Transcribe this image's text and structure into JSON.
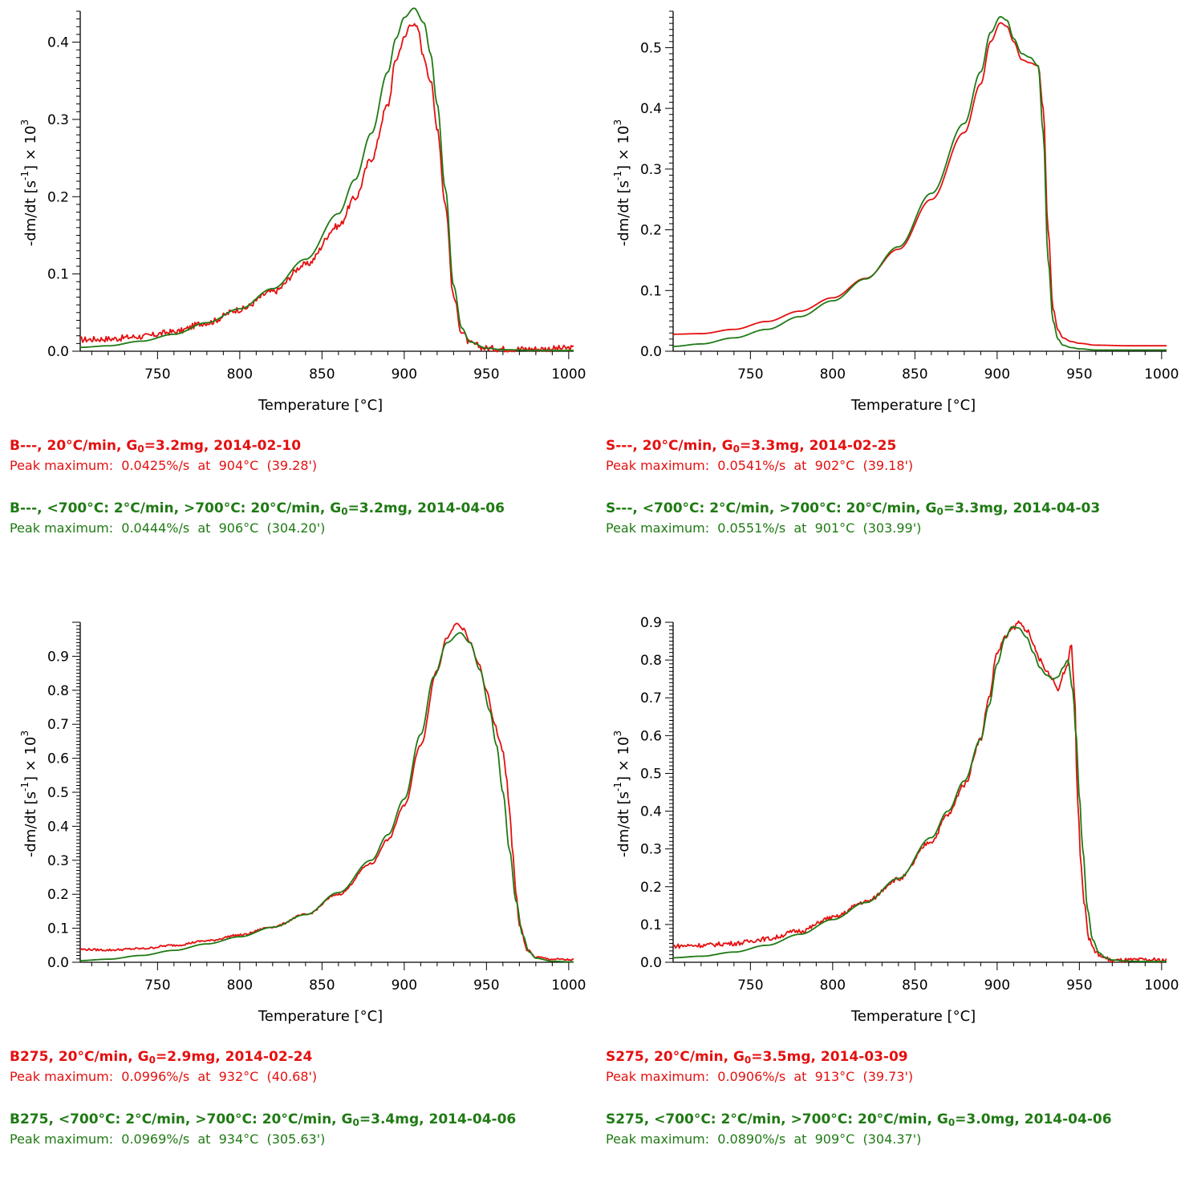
{
  "axis_labels": {
    "xlabel": "Temperature  [°C]",
    "ylabel_prefix": "-dm/dt  [s",
    "ylabel_exp": "-1",
    "ylabel_mid": "]  ×  10",
    "ylabel_pow": "3"
  },
  "colors": {
    "red": "#e41010",
    "green": "#1f7a14"
  },
  "chart_data": [
    {
      "type": "line",
      "xlim": [
        703,
        1003
      ],
      "ylim": [
        0,
        0.44
      ],
      "xticks": [
        750,
        800,
        850,
        900,
        950,
        1000
      ],
      "yticks": [
        0.0,
        0.1,
        0.2,
        0.3,
        0.4
      ],
      "ydecimals": 1,
      "xlabel": "Temperature  [°C]",
      "series": [
        {
          "name": "B---, 20°C/min, G0=3.2mg, 2014-02-10",
          "color": "#e41010",
          "noise": 0.004,
          "x": [
            703,
            720,
            740,
            760,
            780,
            800,
            820,
            840,
            860,
            870,
            880,
            890,
            895,
            900,
            904,
            908,
            912,
            916,
            920,
            925,
            930,
            935,
            940,
            950,
            960,
            980,
            1003
          ],
          "y": [
            0.015,
            0.016,
            0.019,
            0.025,
            0.037,
            0.054,
            0.077,
            0.112,
            0.162,
            0.198,
            0.249,
            0.318,
            0.378,
            0.405,
            0.425,
            0.418,
            0.38,
            0.35,
            0.29,
            0.19,
            0.07,
            0.025,
            0.01,
            0.004,
            0.003,
            0.003,
            0.004
          ]
        },
        {
          "name": "B---, <700°C: 2°C/min, >700°C: 20°C/min, G0=3.2mg, 2014-04-06",
          "color": "#1f7a14",
          "noise": 0,
          "x": [
            703,
            720,
            740,
            760,
            780,
            800,
            820,
            840,
            860,
            870,
            880,
            890,
            895,
            900,
            906,
            912,
            916,
            920,
            925,
            930,
            935,
            940,
            950,
            960,
            980,
            1003
          ],
          "y": [
            0.005,
            0.007,
            0.013,
            0.022,
            0.037,
            0.055,
            0.081,
            0.119,
            0.178,
            0.222,
            0.282,
            0.361,
            0.405,
            0.432,
            0.444,
            0.425,
            0.385,
            0.32,
            0.21,
            0.085,
            0.03,
            0.012,
            0.004,
            0.002,
            0.001,
            0.001
          ]
        }
      ]
    },
    {
      "type": "line",
      "xlim": [
        703,
        1003
      ],
      "ylim": [
        0,
        0.56
      ],
      "xticks": [
        750,
        800,
        850,
        900,
        950,
        1000
      ],
      "yticks": [
        0.0,
        0.1,
        0.2,
        0.3,
        0.4,
        0.5
      ],
      "ydecimals": 1,
      "xlabel": "Temperature  [°C]",
      "series": [
        {
          "name": "S---, 20°C/min, G0=3.3mg, 2014-02-25",
          "color": "#e41010",
          "noise": 0,
          "x": [
            703,
            720,
            740,
            760,
            780,
            800,
            820,
            840,
            860,
            880,
            890,
            896,
            902,
            906,
            910,
            915,
            920,
            925,
            928,
            931,
            934,
            937,
            940,
            945,
            950,
            960,
            980,
            1003
          ],
          "y": [
            0.028,
            0.029,
            0.036,
            0.049,
            0.066,
            0.088,
            0.12,
            0.168,
            0.25,
            0.36,
            0.44,
            0.51,
            0.541,
            0.535,
            0.51,
            0.48,
            0.475,
            0.47,
            0.4,
            0.2,
            0.07,
            0.035,
            0.022,
            0.016,
            0.013,
            0.01,
            0.009,
            0.009
          ]
        },
        {
          "name": "S---, <700°C: 2°C/min, >700°C: 20°C/min, G0=3.3mg, 2014-04-03",
          "color": "#1f7a14",
          "noise": 0,
          "x": [
            703,
            720,
            740,
            760,
            780,
            800,
            820,
            840,
            860,
            880,
            890,
            896,
            902,
            906,
            910,
            915,
            920,
            925,
            928,
            931,
            934,
            937,
            940,
            945,
            950,
            960,
            980,
            1003
          ],
          "y": [
            0.008,
            0.012,
            0.022,
            0.036,
            0.057,
            0.083,
            0.119,
            0.172,
            0.26,
            0.375,
            0.46,
            0.525,
            0.551,
            0.545,
            0.515,
            0.49,
            0.484,
            0.47,
            0.36,
            0.15,
            0.05,
            0.02,
            0.01,
            0.006,
            0.004,
            0.002,
            0.002,
            0.002
          ]
        }
      ]
    },
    {
      "type": "line",
      "xlim": [
        703,
        1003
      ],
      "ylim": [
        0,
        1.0
      ],
      "xticks": [
        750,
        800,
        850,
        900,
        950,
        1000
      ],
      "yticks": [
        0.0,
        0.1,
        0.2,
        0.3,
        0.4,
        0.5,
        0.6,
        0.7,
        0.8,
        0.9
      ],
      "ydecimals": 1,
      "xlabel": "Temperature  [°C]",
      "series": [
        {
          "name": "B275, 20°C/min, G0=2.9mg, 2014-02-24",
          "color": "#e41010",
          "noise": 0.003,
          "x": [
            703,
            720,
            740,
            760,
            780,
            800,
            820,
            840,
            860,
            880,
            890,
            900,
            910,
            920,
            926,
            932,
            936,
            940,
            945,
            950,
            955,
            958,
            960,
            962,
            964,
            966,
            968,
            970,
            975,
            980,
            990,
            1003
          ],
          "y": [
            0.038,
            0.036,
            0.04,
            0.05,
            0.063,
            0.08,
            0.104,
            0.14,
            0.2,
            0.29,
            0.36,
            0.46,
            0.64,
            0.86,
            0.955,
            0.996,
            0.98,
            0.94,
            0.88,
            0.8,
            0.7,
            0.65,
            0.62,
            0.55,
            0.45,
            0.32,
            0.2,
            0.11,
            0.035,
            0.015,
            0.009,
            0.007
          ]
        },
        {
          "name": "B275, <700°C: 2°C/min, >700°C: 20°C/min, G0=3.4mg, 2014-04-06",
          "color": "#1f7a14",
          "noise": 0,
          "x": [
            703,
            720,
            740,
            760,
            780,
            800,
            820,
            840,
            860,
            880,
            890,
            900,
            910,
            918,
            926,
            934,
            940,
            946,
            952,
            956,
            960,
            964,
            968,
            972,
            976,
            980,
            990,
            1003
          ],
          "y": [
            0.005,
            0.009,
            0.02,
            0.035,
            0.054,
            0.075,
            0.103,
            0.14,
            0.205,
            0.3,
            0.375,
            0.48,
            0.67,
            0.84,
            0.94,
            0.969,
            0.94,
            0.86,
            0.74,
            0.64,
            0.5,
            0.33,
            0.18,
            0.08,
            0.03,
            0.012,
            0.003,
            0.001
          ]
        }
      ]
    },
    {
      "type": "line",
      "xlim": [
        703,
        1003
      ],
      "ylim": [
        0,
        0.9
      ],
      "xticks": [
        750,
        800,
        850,
        900,
        950,
        1000
      ],
      "yticks": [
        0.0,
        0.1,
        0.2,
        0.3,
        0.4,
        0.5,
        0.6,
        0.7,
        0.8,
        0.9
      ],
      "ydecimals": 1,
      "xlabel": "Temperature  [°C]",
      "series": [
        {
          "name": "S275, 20°C/min, G0=3.5mg, 2014-03-09",
          "color": "#e41010",
          "noise": 0.006,
          "x": [
            703,
            720,
            740,
            760,
            780,
            800,
            820,
            840,
            860,
            870,
            880,
            890,
            895,
            900,
            905,
            910,
            913,
            918,
            922,
            926,
            930,
            934,
            937,
            940,
            943,
            945,
            947,
            949,
            951,
            953,
            956,
            960,
            965,
            970,
            980,
            990,
            1003
          ],
          "y": [
            0.043,
            0.045,
            0.05,
            0.062,
            0.083,
            0.118,
            0.16,
            0.22,
            0.32,
            0.39,
            0.47,
            0.59,
            0.7,
            0.82,
            0.86,
            0.885,
            0.9,
            0.88,
            0.84,
            0.8,
            0.77,
            0.75,
            0.72,
            0.76,
            0.79,
            0.85,
            0.72,
            0.42,
            0.26,
            0.15,
            0.06,
            0.025,
            0.012,
            0.004,
            0.005,
            0.006,
            0.005
          ]
        },
        {
          "name": "S275, <700°C: 2°C/min, >700°C: 20°C/min, G0=3.0mg, 2014-04-06",
          "color": "#1f7a14",
          "noise": 0,
          "x": [
            703,
            720,
            740,
            760,
            780,
            800,
            820,
            840,
            860,
            870,
            880,
            890,
            895,
            900,
            905,
            909,
            913,
            918,
            922,
            926,
            930,
            934,
            937,
            940,
            943,
            946,
            948,
            950,
            952,
            955,
            958,
            962,
            966,
            970,
            980,
            990,
            1003
          ],
          "y": [
            0.012,
            0.016,
            0.027,
            0.045,
            0.074,
            0.113,
            0.158,
            0.222,
            0.33,
            0.4,
            0.48,
            0.59,
            0.68,
            0.79,
            0.86,
            0.888,
            0.885,
            0.86,
            0.82,
            0.78,
            0.76,
            0.75,
            0.755,
            0.78,
            0.8,
            0.72,
            0.6,
            0.44,
            0.3,
            0.14,
            0.06,
            0.025,
            0.012,
            0.006,
            0.003,
            0.002,
            0.002
          ]
        }
      ]
    }
  ],
  "legends": [
    {
      "red_title": {
        "a": "B---, 20°C/min, G",
        "sub": "0",
        "b": "=3.2mg, 2014-02-10"
      },
      "red_peak": "Peak maximum:  0.0425%/s  at  904°C  (39.28')",
      "green_title": {
        "a": "B---, <700°C: 2°C/min, >700°C: 20°C/min, G",
        "sub": "0",
        "b": "=3.2mg, 2014-04-06"
      },
      "green_peak": "Peak maximum:  0.0444%/s  at  906°C  (304.20')"
    },
    {
      "red_title": {
        "a": "S---, 20°C/min, G",
        "sub": "0",
        "b": "=3.3mg, 2014-02-25"
      },
      "red_peak": "Peak maximum:  0.0541%/s  at  902°C  (39.18')",
      "green_title": {
        "a": "S---, <700°C: 2°C/min, >700°C: 20°C/min, G",
        "sub": "0",
        "b": "=3.3mg, 2014-04-03"
      },
      "green_peak": "Peak maximum:  0.0551%/s  at  901°C  (303.99')"
    },
    {
      "red_title": {
        "a": "B275, 20°C/min, G",
        "sub": "0",
        "b": "=2.9mg, 2014-02-24"
      },
      "red_peak": "Peak maximum:  0.0996%/s  at  932°C  (40.68')",
      "green_title": {
        "a": "B275, <700°C: 2°C/min, >700°C: 20°C/min, G",
        "sub": "0",
        "b": "=3.4mg, 2014-04-06"
      },
      "green_peak": "Peak maximum:  0.0969%/s  at  934°C  (305.63')"
    },
    {
      "red_title": {
        "a": "S275, 20°C/min, G",
        "sub": "0",
        "b": "=3.5mg, 2014-03-09"
      },
      "red_peak": "Peak maximum:  0.0906%/s  at  913°C  (39.73')",
      "green_title": {
        "a": "S275, <700°C: 2°C/min, >700°C: 20°C/min, G",
        "sub": "0",
        "b": "=3.0mg, 2014-04-06"
      },
      "green_peak": "Peak maximum:  0.0890%/s  at  909°C  (304.37')"
    }
  ]
}
